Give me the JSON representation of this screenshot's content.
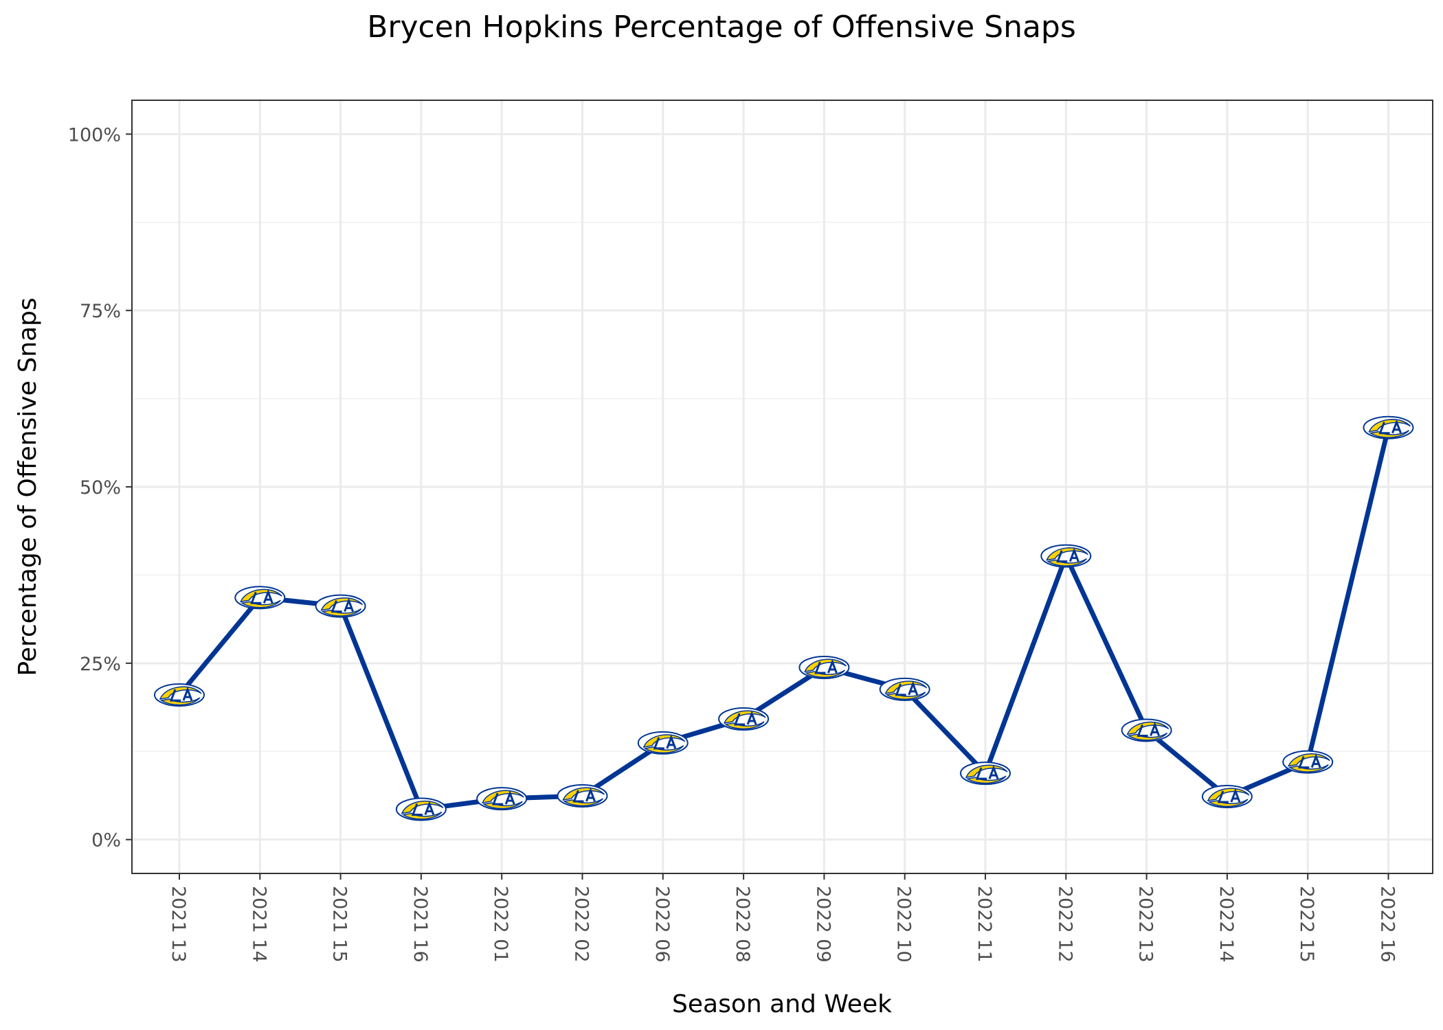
{
  "chart_data": {
    "type": "line",
    "title": "Brycen Hopkins Percentage of Offensive Snaps",
    "xlabel": "Season and Week",
    "ylabel": "Percentage of Offensive Snaps",
    "categories": [
      "2021 13",
      "2021 14",
      "2021 15",
      "2021 16",
      "2022 01",
      "2022 02",
      "2022 06",
      "2022 08",
      "2022 09",
      "2022 10",
      "2022 11",
      "2022 12",
      "2022 13",
      "2022 14",
      "2022 15",
      "2022 16"
    ],
    "series": [
      {
        "values": [
          20.5,
          34.3,
          33.1,
          4.3,
          5.8,
          6.2,
          13.7,
          17.1,
          24.4,
          21.3,
          9.4,
          40.2,
          15.5,
          6.1,
          11.0,
          58.4
        ]
      }
    ],
    "y_ticks": [
      0,
      25,
      50,
      75,
      100
    ],
    "y_tick_labels": [
      "0%",
      "25%",
      "50%",
      "75%",
      "100%"
    ],
    "ylim": [
      -4.8,
      104.8
    ],
    "grid": true,
    "line_color": "#003594",
    "marker": "LA Rams logo",
    "marker_colors": {
      "gold": "#FFD100",
      "blue": "#003594",
      "white": "#FFFFFF"
    }
  }
}
